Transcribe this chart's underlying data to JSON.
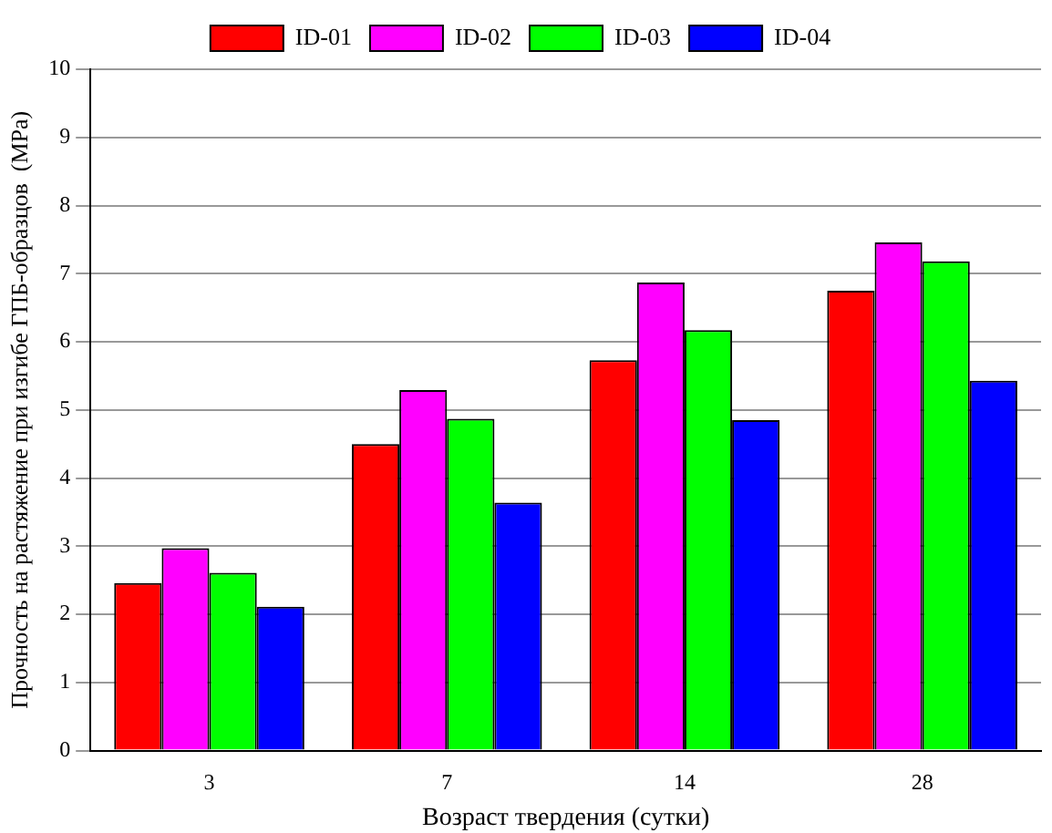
{
  "chart_data": {
    "type": "bar",
    "xlabel": "Возраст твердения (сутки)",
    "ylabel": "Прочность на растяжение при изгибе ГПБ-образцов  (MPa)",
    "categories": [
      "3",
      "7",
      "14",
      "28"
    ],
    "series": [
      {
        "name": "ID-01",
        "color": "#ff0000",
        "values": [
          2.46,
          4.5,
          5.73,
          6.75
        ]
      },
      {
        "name": "ID-02",
        "color": "#ff00ff",
        "values": [
          2.97,
          5.29,
          6.87,
          7.46
        ]
      },
      {
        "name": "ID-03",
        "color": "#00ff00",
        "values": [
          2.61,
          4.87,
          6.17,
          7.18
        ]
      },
      {
        "name": "ID-04",
        "color": "#0000ff",
        "values": [
          2.11,
          3.64,
          4.85,
          5.43
        ]
      }
    ],
    "ylim": [
      0,
      10
    ],
    "yticks": [
      0,
      1,
      2,
      3,
      4,
      5,
      6,
      7,
      8,
      9,
      10
    ],
    "grid": "y",
    "legend": "top"
  }
}
